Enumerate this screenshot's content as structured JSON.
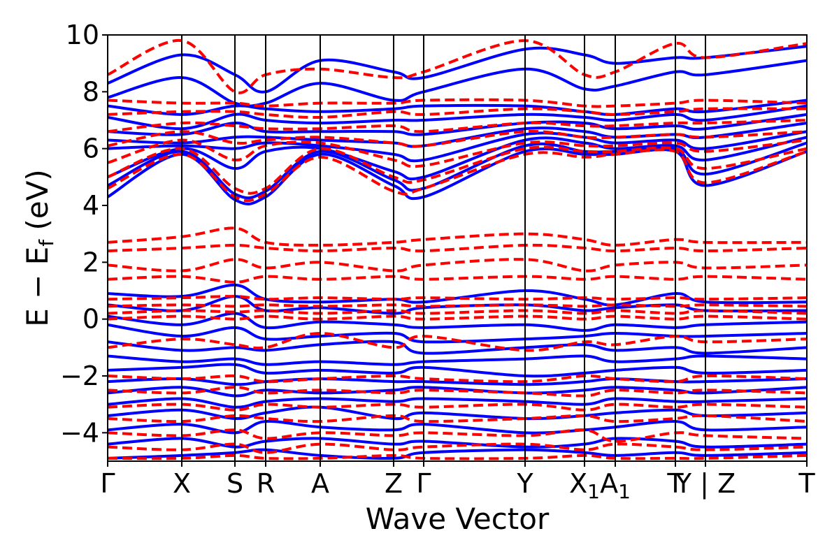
{
  "chart_data": {
    "type": "line",
    "xlabel": "Wave Vector",
    "ylabel": "E − E",
    "ylabel_sub": "f",
    "ylabel_unit": " (eV)",
    "ylim": [
      -5,
      10
    ],
    "yticks": [
      -4,
      -2,
      0,
      2,
      4,
      6,
      8,
      10
    ],
    "ytick_labels": [
      "−4",
      "−2",
      "0",
      "2",
      "4",
      "6",
      "8",
      "10"
    ],
    "xlim": [
      0,
      1
    ],
    "kpoints": [
      {
        "x": 0.0,
        "label": "Γ",
        "sub": ""
      },
      {
        "x": 0.106,
        "label": "X",
        "sub": ""
      },
      {
        "x": 0.182,
        "label": "S",
        "sub": ""
      },
      {
        "x": 0.226,
        "label": "R",
        "sub": ""
      },
      {
        "x": 0.304,
        "label": "A",
        "sub": ""
      },
      {
        "x": 0.409,
        "label": "Z",
        "sub": ""
      },
      {
        "x": 0.452,
        "label": "Γ",
        "sub": ""
      },
      {
        "x": 0.597,
        "label": "Y",
        "sub": ""
      },
      {
        "x": 0.682,
        "label": "X",
        "sub": "1"
      },
      {
        "x": 0.726,
        "label": "A",
        "sub": "1"
      },
      {
        "x": 0.812,
        "label": "T",
        "sub": ""
      },
      {
        "x": 0.855,
        "label": "Y | Z",
        "sub": ""
      },
      {
        "x": 1.0,
        "label": "T",
        "sub": ""
      }
    ],
    "series": [
      {
        "style": "solid",
        "color": "#0000ff",
        "bands": [
          [
            -4.9,
            -4.8,
            -4.7,
            -4.6,
            -4.8,
            -4.9,
            -4.7,
            -4.6,
            -4.7,
            -4.8,
            -4.7,
            -4.8,
            -4.7
          ],
          [
            -4.4,
            -4.2,
            -4.5,
            -4.3,
            -4.2,
            -4.4,
            -4.3,
            -4.5,
            -4.4,
            -4.2,
            -4.3,
            -4.5,
            -4.4
          ],
          [
            -3.9,
            -3.7,
            -4.0,
            -3.6,
            -3.8,
            -3.9,
            -3.7,
            -4.0,
            -3.9,
            -3.8,
            -3.6,
            -3.9,
            -3.8
          ],
          [
            -3.4,
            -3.2,
            -3.5,
            -3.3,
            -3.1,
            -3.5,
            -3.3,
            -3.5,
            -3.4,
            -3.3,
            -3.2,
            -3.4,
            -3.3
          ],
          [
            -3.0,
            -2.8,
            -3.1,
            -2.9,
            -2.8,
            -2.9,
            -2.8,
            -2.9,
            -3.0,
            -2.8,
            -2.9,
            -2.9,
            -2.8
          ],
          [
            -2.6,
            -2.4,
            -2.7,
            -2.5,
            -2.6,
            -2.5,
            -2.4,
            -2.6,
            -2.5,
            -2.4,
            -2.5,
            -2.6,
            -2.4
          ],
          [
            -2.2,
            -2.1,
            -2.3,
            -2.2,
            -2.1,
            -2.2,
            -2.2,
            -2.3,
            -2.2,
            -2.1,
            -2.2,
            -2.2,
            -2.1
          ],
          [
            -1.8,
            -1.7,
            -1.6,
            -1.9,
            -1.8,
            -1.9,
            -1.7,
            -2.0,
            -1.9,
            -1.8,
            -1.7,
            -1.9,
            -1.8
          ],
          [
            -1.3,
            -1.5,
            -1.4,
            -1.6,
            -1.5,
            -1.6,
            -1.5,
            -1.4,
            -1.3,
            -1.5,
            -1.4,
            -1.3,
            -1.4
          ],
          [
            -0.8,
            -1.1,
            -1.0,
            -1.1,
            -0.9,
            -0.8,
            -1.2,
            -1.0,
            -0.9,
            -1.1,
            -1.0,
            -1.2,
            -1.0
          ],
          [
            -0.2,
            -0.6,
            -0.3,
            -0.7,
            -0.6,
            -0.5,
            -0.8,
            -0.7,
            -0.6,
            -0.5,
            -0.6,
            -0.6,
            -0.5
          ],
          [
            0.1,
            -0.2,
            0.2,
            -0.3,
            -0.1,
            -0.2,
            -0.3,
            -0.2,
            -0.4,
            -0.2,
            -0.3,
            -0.2,
            -0.1
          ],
          [
            0.5,
            0.3,
            0.8,
            0.3,
            0.4,
            0.2,
            0.4,
            0.5,
            0.3,
            0.4,
            0.5,
            0.3,
            0.3
          ],
          [
            0.9,
            0.8,
            1.2,
            0.7,
            0.6,
            0.7,
            0.6,
            1.0,
            0.7,
            0.5,
            0.9,
            0.6,
            0.6
          ],
          [
            4.3,
            5.8,
            4.2,
            4.3,
            5.8,
            4.7,
            4.3,
            5.9,
            5.8,
            5.8,
            5.9,
            4.7,
            5.9
          ],
          [
            4.7,
            5.9,
            4.4,
            4.5,
            5.9,
            4.9,
            4.6,
            6.1,
            5.9,
            5.9,
            6.0,
            5.1,
            6.2
          ],
          [
            5.0,
            6.0,
            5.3,
            5.9,
            6.0,
            5.2,
            5.0,
            6.3,
            6.2,
            6.0,
            6.1,
            5.6,
            6.4
          ],
          [
            6.0,
            6.1,
            6.0,
            6.2,
            6.1,
            5.8,
            5.6,
            6.5,
            6.4,
            6.2,
            6.3,
            6.0,
            6.6
          ],
          [
            6.3,
            6.2,
            6.4,
            6.4,
            6.3,
            6.2,
            6.1,
            6.7,
            6.6,
            6.4,
            6.5,
            6.4,
            6.9
          ],
          [
            6.6,
            6.5,
            6.9,
            6.6,
            6.6,
            6.6,
            6.5,
            6.9,
            6.9,
            6.7,
            6.8,
            6.7,
            7.2
          ],
          [
            7.1,
            6.7,
            7.2,
            7.0,
            6.9,
            7.0,
            7.0,
            7.2,
            7.1,
            7.0,
            7.2,
            7.0,
            7.5
          ],
          [
            7.5,
            7.2,
            7.5,
            7.4,
            7.3,
            7.4,
            7.5,
            7.5,
            7.3,
            7.2,
            7.4,
            7.3,
            7.7
          ],
          [
            7.8,
            8.5,
            7.6,
            7.6,
            8.3,
            7.7,
            8.0,
            8.8,
            8.1,
            8.2,
            8.7,
            8.6,
            9.1
          ],
          [
            8.3,
            9.3,
            8.6,
            8.0,
            9.1,
            8.7,
            8.5,
            9.5,
            9.3,
            9.0,
            9.2,
            9.2,
            9.6
          ]
        ]
      },
      {
        "style": "dashed",
        "color": "#ff0000",
        "bands": [
          [
            -4.9,
            -4.9,
            -4.8,
            -4.9,
            -4.9,
            -4.8,
            -4.9,
            -4.9,
            -4.8,
            -4.9,
            -4.9,
            -4.9,
            -4.8
          ],
          [
            -4.5,
            -4.6,
            -4.4,
            -4.7,
            -4.4,
            -4.6,
            -4.5,
            -4.4,
            -4.6,
            -4.4,
            -4.5,
            -4.6,
            -4.5
          ],
          [
            -4.0,
            -4.1,
            -3.9,
            -4.2,
            -4.0,
            -4.1,
            -4.0,
            -4.1,
            -3.9,
            -4.3,
            -4.0,
            -4.1,
            -4.2
          ],
          [
            -3.5,
            -3.6,
            -3.4,
            -3.5,
            -3.6,
            -3.4,
            -3.6,
            -3.5,
            -3.4,
            -3.6,
            -3.5,
            -3.4,
            -3.6
          ],
          [
            -3.1,
            -3.0,
            -3.2,
            -3.0,
            -3.1,
            -3.0,
            -3.1,
            -3.0,
            -3.2,
            -3.0,
            -3.1,
            -3.0,
            -3.1
          ],
          [
            -2.5,
            -2.6,
            -2.4,
            -2.6,
            -2.5,
            -2.6,
            -2.5,
            -2.6,
            -2.7,
            -2.5,
            -2.6,
            -2.5,
            -2.6
          ],
          [
            -2.0,
            -2.1,
            -2.0,
            -2.2,
            -2.1,
            -2.0,
            -2.1,
            -2.2,
            -2.0,
            -2.1,
            -2.2,
            -2.0,
            -2.1
          ],
          [
            -1.0,
            -0.7,
            -0.9,
            -1.0,
            -0.5,
            -1.0,
            -0.6,
            -1.1,
            -0.8,
            -0.9,
            -0.6,
            -0.8,
            -0.7
          ],
          [
            0.0,
            0.1,
            0.0,
            0.1,
            0.0,
            0.1,
            0.0,
            0.1,
            0.0,
            0.1,
            0.0,
            0.1,
            0.0
          ],
          [
            0.2,
            0.3,
            0.25,
            0.3,
            0.2,
            0.3,
            0.2,
            0.3,
            0.2,
            0.3,
            0.2,
            0.3,
            0.2
          ],
          [
            0.45,
            0.5,
            0.45,
            0.5,
            0.45,
            0.5,
            0.45,
            0.5,
            0.45,
            0.5,
            0.45,
            0.5,
            0.45
          ],
          [
            0.7,
            0.75,
            0.8,
            0.7,
            0.75,
            0.7,
            0.75,
            0.7,
            0.75,
            0.7,
            0.75,
            0.7,
            0.75
          ],
          [
            1.4,
            1.5,
            1.3,
            1.5,
            1.4,
            1.5,
            1.4,
            1.5,
            1.4,
            1.5,
            1.4,
            1.5,
            1.4
          ],
          [
            1.9,
            1.7,
            2.1,
            1.8,
            2.0,
            1.7,
            1.9,
            2.1,
            1.7,
            1.9,
            2.0,
            1.8,
            1.9
          ],
          [
            2.4,
            2.5,
            2.6,
            2.5,
            2.4,
            2.5,
            2.4,
            2.6,
            2.5,
            2.4,
            2.5,
            2.4,
            2.5
          ],
          [
            2.7,
            2.9,
            3.2,
            2.7,
            2.6,
            2.7,
            2.8,
            3.0,
            2.8,
            2.6,
            2.8,
            2.7,
            2.7
          ],
          [
            4.6,
            5.8,
            4.3,
            4.4,
            5.7,
            4.5,
            4.6,
            5.8,
            5.7,
            5.8,
            5.9,
            4.8,
            5.9
          ],
          [
            5.0,
            6.0,
            4.6,
            4.6,
            6.0,
            5.0,
            4.9,
            6.0,
            5.9,
            5.9,
            6.0,
            5.3,
            6.0
          ],
          [
            5.5,
            6.3,
            5.6,
            6.1,
            6.2,
            5.6,
            5.4,
            6.2,
            6.1,
            6.1,
            6.2,
            5.9,
            6.3
          ],
          [
            6.1,
            6.6,
            6.2,
            6.3,
            6.4,
            6.2,
            6.1,
            6.6,
            6.4,
            6.4,
            6.5,
            6.4,
            6.6
          ],
          [
            6.6,
            6.9,
            6.8,
            6.7,
            6.7,
            6.8,
            6.6,
            6.9,
            6.8,
            6.8,
            6.9,
            6.9,
            7.0
          ],
          [
            7.2,
            7.3,
            7.3,
            7.2,
            7.1,
            7.3,
            7.2,
            7.4,
            7.3,
            7.2,
            7.3,
            7.4,
            7.4
          ],
          [
            7.7,
            7.6,
            7.6,
            7.5,
            7.6,
            7.6,
            7.7,
            7.7,
            7.5,
            7.5,
            7.6,
            7.7,
            7.6
          ],
          [
            8.6,
            9.8,
            8.0,
            8.6,
            8.8,
            8.5,
            8.7,
            9.8,
            8.6,
            8.7,
            9.7,
            9.2,
            9.7
          ]
        ]
      }
    ]
  }
}
